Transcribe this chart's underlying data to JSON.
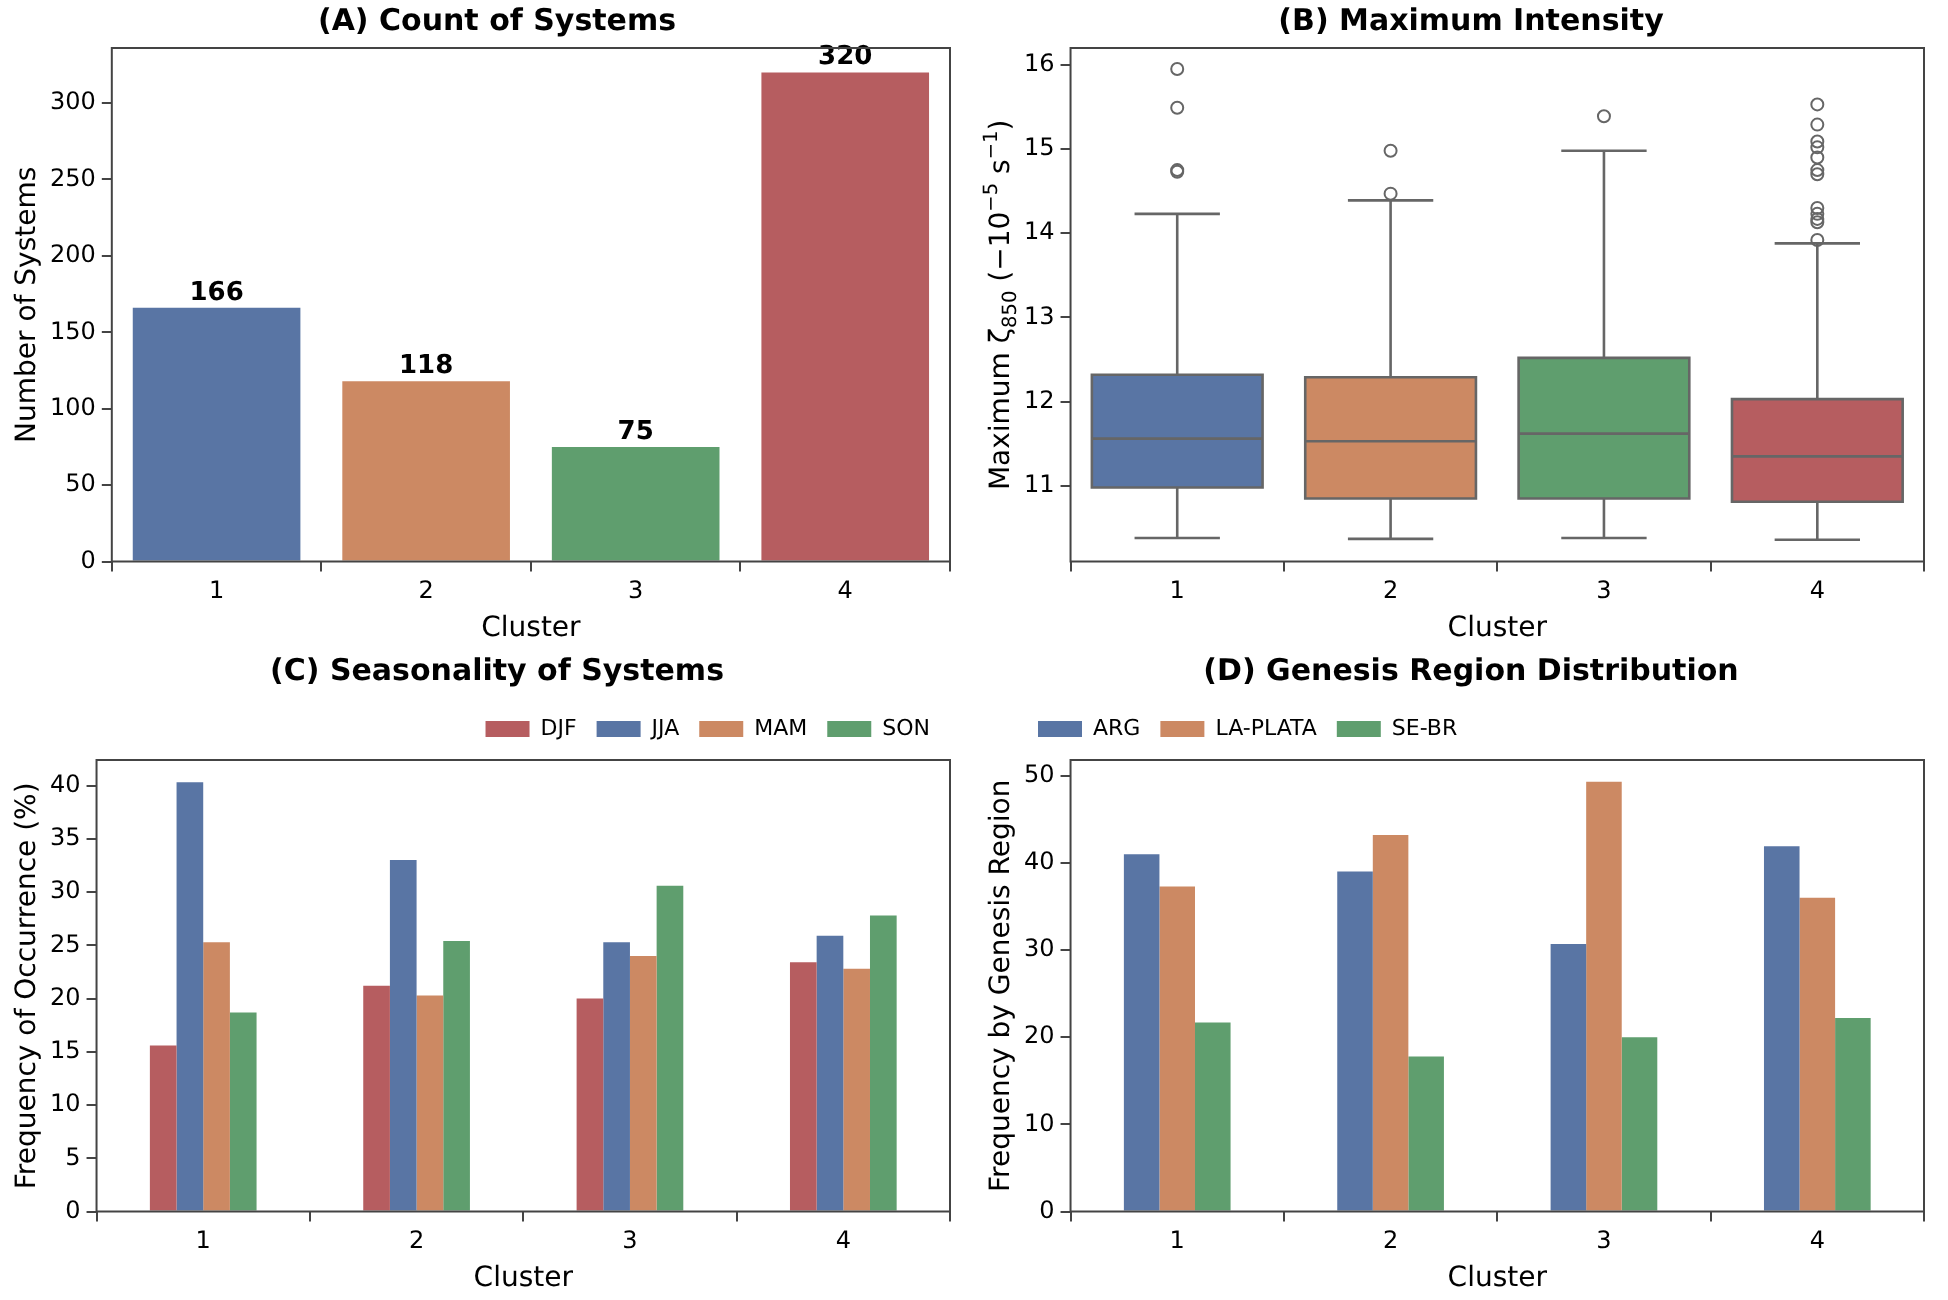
{
  "chart_data": [
    {
      "type": "bar",
      "title": "(A) Count of Systems",
      "xlabel": "Cluster",
      "ylabel": "Number of Systems",
      "categories": [
        "1",
        "2",
        "3",
        "4"
      ],
      "values": [
        166,
        118,
        75,
        320
      ],
      "colors": [
        "#5975a4",
        "#cc8963",
        "#5f9e6e",
        "#b65d60"
      ],
      "ylim": [
        0,
        336
      ],
      "yticks": [
        0,
        50,
        100,
        150,
        200,
        250,
        300
      ],
      "data_labels": true,
      "grid": false,
      "legend": false
    },
    {
      "type": "box",
      "title": "(B) Maximum Intensity",
      "xlabel": "Cluster",
      "ylabel": "Maximum ζ$_{850}$ (−10$^{−5}$ s$^{−1}$)",
      "categories": [
        "1",
        "2",
        "3",
        "4"
      ],
      "colors": [
        "#5975a4",
        "#cc8963",
        "#5f9e6e",
        "#b65d60"
      ],
      "ylim": [
        10.1,
        16.2
      ],
      "yticks": [
        11,
        12,
        13,
        14,
        15,
        16
      ],
      "grid": false,
      "legend": false,
      "boxes": [
        {
          "low": 10.38,
          "q1": 10.98,
          "median": 11.56,
          "q3": 12.32,
          "high": 14.23,
          "outliers": [
            15.95,
            15.49,
            14.75,
            14.73
          ]
        },
        {
          "low": 10.37,
          "q1": 10.85,
          "median": 11.53,
          "q3": 12.29,
          "high": 14.39,
          "outliers": [
            14.98,
            14.47
          ]
        },
        {
          "low": 10.38,
          "q1": 10.85,
          "median": 11.62,
          "q3": 12.52,
          "high": 14.98,
          "outliers": [
            15.39
          ]
        },
        {
          "low": 10.36,
          "q1": 10.81,
          "median": 11.35,
          "q3": 12.03,
          "high": 13.88,
          "outliers": [
            15.53,
            15.29,
            15.09,
            15.02,
            14.9,
            14.75,
            14.7,
            14.3,
            14.23,
            14.17,
            14.13,
            13.92
          ]
        }
      ]
    },
    {
      "type": "bar",
      "title": "(C) Seasonality of Systems",
      "xlabel": "Cluster",
      "ylabel": "Frequency of Occurrence (%)",
      "categories": [
        "1",
        "2",
        "3",
        "4"
      ],
      "ylim": [
        0,
        42.4
      ],
      "yticks": [
        0,
        5,
        10,
        15,
        20,
        25,
        30,
        35,
        40
      ],
      "grid": false,
      "legend": "top right",
      "series": [
        {
          "name": "DJF",
          "color": "#b65d60",
          "values": [
            15.6,
            21.2,
            20.0,
            23.4
          ]
        },
        {
          "name": "JJA",
          "color": "#5975a4",
          "values": [
            40.3,
            33.0,
            25.3,
            25.9
          ]
        },
        {
          "name": "MAM",
          "color": "#cc8963",
          "values": [
            25.3,
            20.3,
            24.0,
            22.8
          ]
        },
        {
          "name": "SON",
          "color": "#5f9e6e",
          "values": [
            18.7,
            25.4,
            30.6,
            27.8
          ]
        }
      ]
    },
    {
      "type": "bar",
      "title": "(D) Genesis Region Distribution",
      "xlabel": "Cluster",
      "ylabel": "Frequency by Genesis Region",
      "categories": [
        "1",
        "2",
        "3",
        "4"
      ],
      "ylim": [
        0,
        51.8
      ],
      "yticks": [
        0,
        10,
        20,
        30,
        40,
        50
      ],
      "grid": false,
      "legend": "top left",
      "series": [
        {
          "name": "ARG",
          "color": "#5975a4",
          "values": [
            41.0,
            39.0,
            30.7,
            41.9
          ]
        },
        {
          "name": "LA-PLATA",
          "color": "#cc8963",
          "values": [
            37.3,
            43.2,
            49.3,
            36.0
          ]
        },
        {
          "name": "SE-BR",
          "color": "#5f9e6e",
          "values": [
            21.7,
            17.8,
            20.0,
            22.2
          ]
        }
      ]
    }
  ]
}
